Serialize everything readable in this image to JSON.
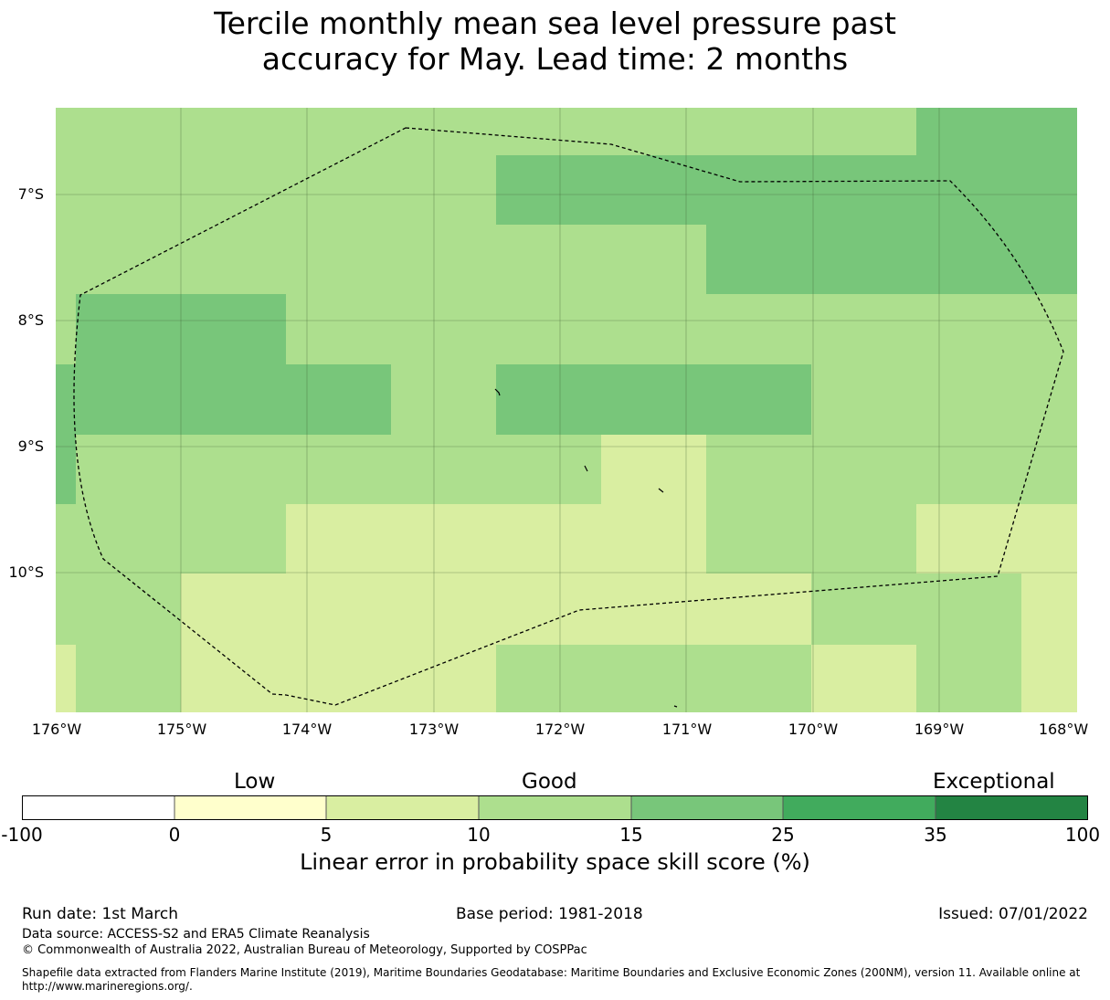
{
  "title_line1": "Tercile monthly mean sea level pressure past",
  "title_line2": "accuracy for May. Lead time: 2 months",
  "map": {
    "lon_range": [
      -176.0,
      -167.9
    ],
    "lat_range": [
      -11.2,
      -6.3
    ],
    "y_ticks": [
      "7°S",
      "8°S",
      "9°S",
      "10°S"
    ],
    "x_ticks": [
      "176°W",
      "175°W",
      "174°W",
      "173°W",
      "172°W",
      "171°W",
      "170°W",
      "169°W",
      "168°W"
    ],
    "colors": {
      "c5_10": "#d9eea1",
      "c10_15": "#addf8e",
      "c15_25": "#78c67a"
    }
  },
  "colorbar": {
    "cat_low": "Low",
    "cat_good": "Good",
    "cat_exceptional": "Exceptional",
    "ticks": [
      "-100",
      "0",
      "5",
      "10",
      "15",
      "25",
      "35",
      "100"
    ],
    "colors": [
      "#ffffff",
      "#ffffcc",
      "#d9eea1",
      "#addf8e",
      "#78c67a",
      "#41ab5d",
      "#238443"
    ],
    "label": "Linear error in probability space skill score (%)"
  },
  "footer": {
    "run_date": "Run date: 1st March",
    "base_period": "Base period: 1981-2018",
    "issued": "Issued: 07/01/2022",
    "data_source": "Data source: ACCESS-S2 and ERA5 Climate Reanalysis",
    "copyright": "© Commonwealth of Australia 2022, Australian Bureau of Meteorology, Supported by COSPPac",
    "shapefile": "Shapefile data extracted from Flanders Marine Institute (2019), Maritime Boundaries Geodatabase: Maritime Boundaries and Exclusive Economic Zones (200NM), version 11. Available online at http://www.marineregions.org/."
  }
}
